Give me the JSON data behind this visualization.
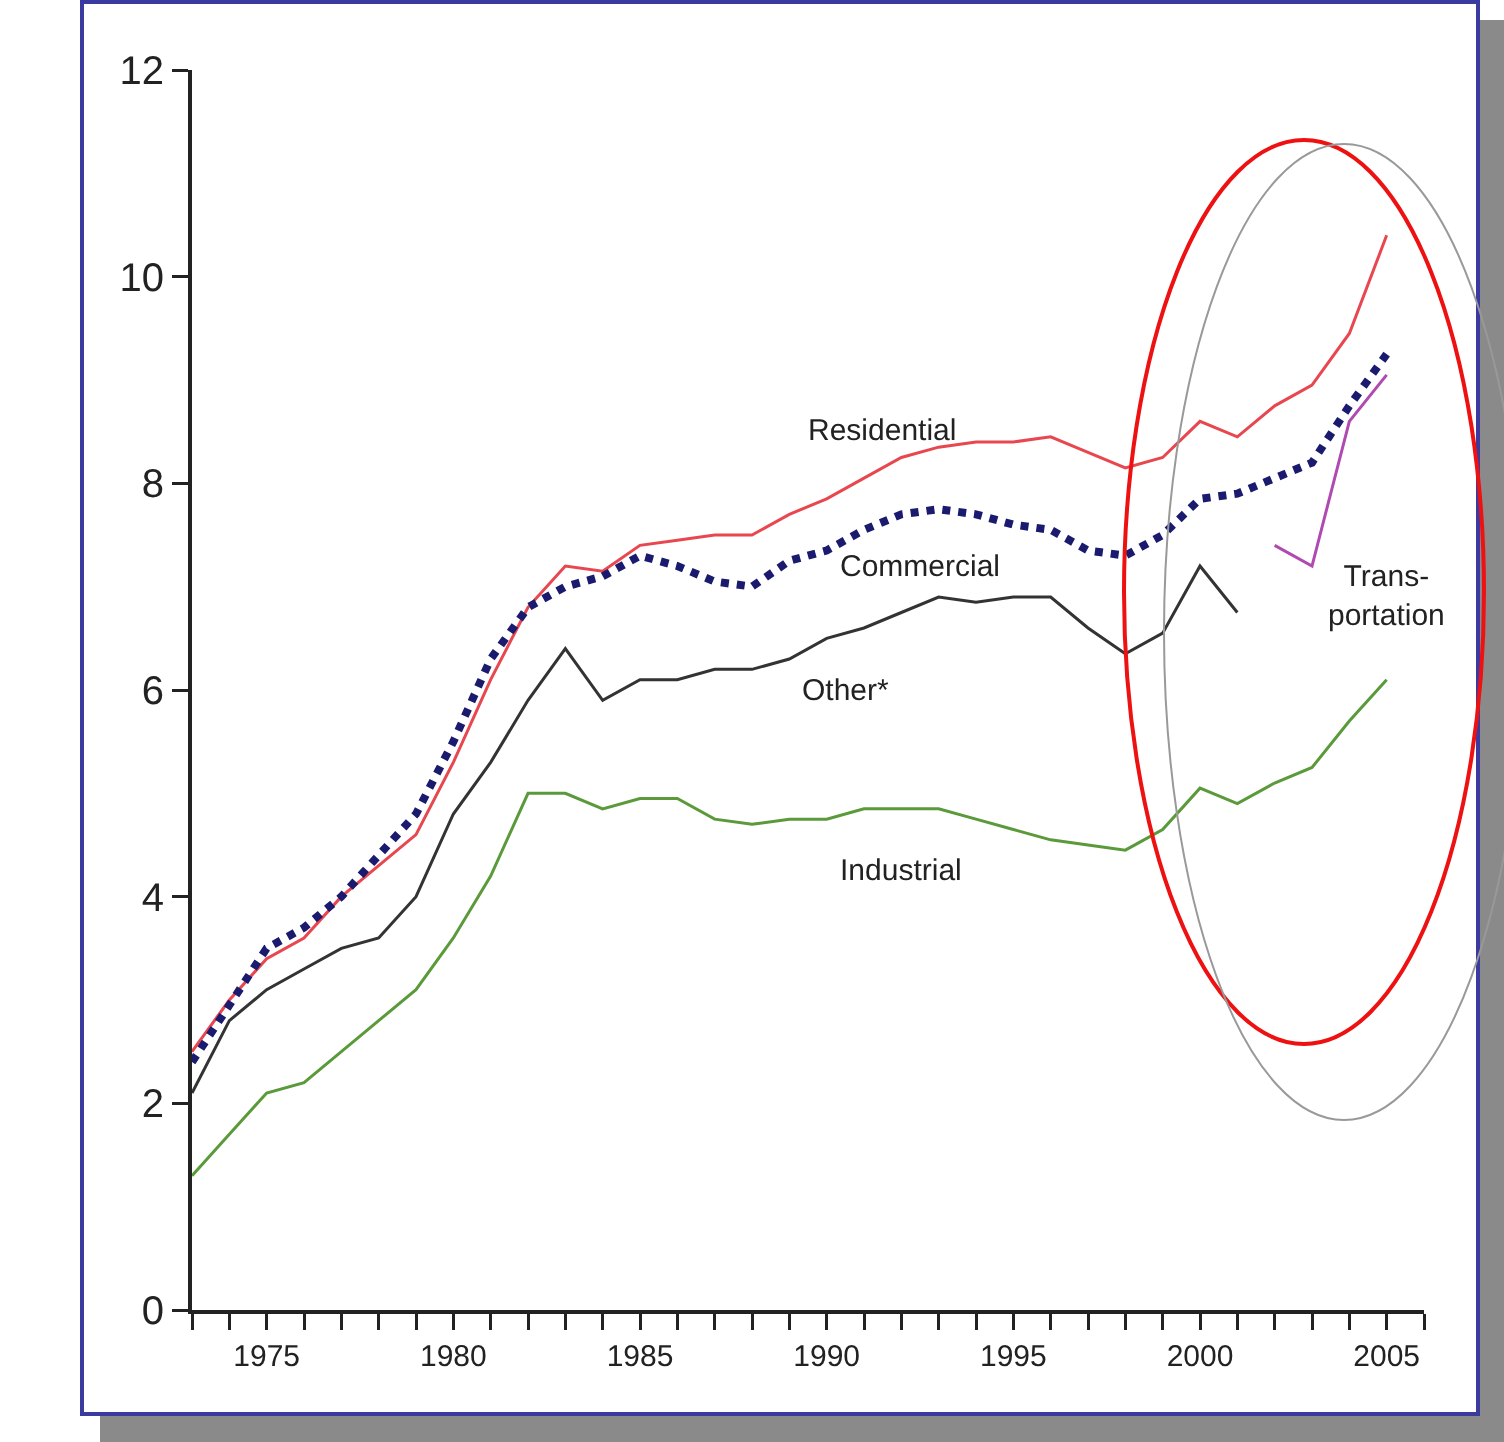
{
  "chart_data": {
    "type": "line",
    "x": [
      1973,
      1974,
      1975,
      1976,
      1977,
      1978,
      1979,
      1980,
      1981,
      1982,
      1983,
      1984,
      1985,
      1986,
      1987,
      1988,
      1989,
      1990,
      1991,
      1992,
      1993,
      1994,
      1995,
      1996,
      1997,
      1998,
      1999,
      2000,
      2001,
      2002,
      2003,
      2004,
      2005
    ],
    "series": [
      {
        "name": "Residential",
        "color": "#e8474f",
        "line_style": "solid",
        "values": [
          2.5,
          3.0,
          3.4,
          3.6,
          4.0,
          4.3,
          4.6,
          5.3,
          6.1,
          6.8,
          7.2,
          7.15,
          7.4,
          7.45,
          7.5,
          7.5,
          7.7,
          7.85,
          8.05,
          8.25,
          8.35,
          8.4,
          8.4,
          8.45,
          8.3,
          8.15,
          8.25,
          8.6,
          8.45,
          8.75,
          8.95,
          9.45,
          10.4
        ]
      },
      {
        "name": "Commercial",
        "color": "#1a1a6e",
        "line_style": "dotted",
        "values": [
          2.4,
          2.95,
          3.5,
          3.7,
          4.0,
          4.4,
          4.8,
          5.5,
          6.3,
          6.8,
          7.0,
          7.1,
          7.3,
          7.2,
          7.05,
          7.0,
          7.25,
          7.35,
          7.55,
          7.7,
          7.75,
          7.7,
          7.6,
          7.55,
          7.35,
          7.3,
          7.5,
          7.85,
          7.9,
          8.05,
          8.2,
          8.75,
          9.25
        ]
      },
      {
        "name": "Other*",
        "color": "#333333",
        "line_style": "solid",
        "values": [
          2.1,
          2.8,
          3.1,
          3.3,
          3.5,
          3.6,
          4.0,
          4.8,
          5.3,
          5.9,
          6.4,
          5.9,
          6.1,
          6.1,
          6.2,
          6.2,
          6.3,
          6.5,
          6.6,
          6.75,
          6.9,
          6.85,
          6.9,
          6.9,
          6.6,
          6.35,
          6.55,
          7.2,
          6.75,
          null,
          null,
          null,
          null
        ]
      },
      {
        "name": "Industrial",
        "color": "#5a9a3a",
        "line_style": "solid",
        "values": [
          1.3,
          1.7,
          2.1,
          2.2,
          2.5,
          2.8,
          3.1,
          3.6,
          4.2,
          5.0,
          5.0,
          4.85,
          4.95,
          4.95,
          4.75,
          4.7,
          4.75,
          4.75,
          4.85,
          4.85,
          4.85,
          4.75,
          4.65,
          4.55,
          4.5,
          4.45,
          4.65,
          5.05,
          4.9,
          5.1,
          5.25,
          5.7,
          6.1
        ]
      },
      {
        "name": "Trans-\nportation",
        "color": "#b04ab0",
        "line_style": "solid",
        "values": [
          null,
          null,
          null,
          null,
          null,
          null,
          null,
          null,
          null,
          null,
          null,
          null,
          null,
          null,
          null,
          null,
          null,
          null,
          null,
          null,
          null,
          null,
          null,
          null,
          null,
          null,
          null,
          null,
          null,
          7.4,
          7.2,
          8.6,
          9.05
        ]
      }
    ],
    "xlim": [
      1973,
      2006
    ],
    "xticks": [
      {
        "value": 1973,
        "label": null
      },
      {
        "value": 1974,
        "label": null
      },
      1975,
      {
        "value": 1976,
        "label": null
      },
      {
        "value": 1977,
        "label": null
      },
      {
        "value": 1978,
        "label": null
      },
      {
        "value": 1979,
        "label": null
      },
      1980,
      {
        "value": 1981,
        "label": null
      },
      {
        "value": 1982,
        "label": null
      },
      {
        "value": 1983,
        "label": null
      },
      {
        "value": 1984,
        "label": null
      },
      1985,
      {
        "value": 1986,
        "label": null
      },
      {
        "value": 1987,
        "label": null
      },
      {
        "value": 1988,
        "label": null
      },
      {
        "value": 1989,
        "label": null
      },
      1990,
      {
        "value": 1991,
        "label": null
      },
      {
        "value": 1992,
        "label": null
      },
      {
        "value": 1993,
        "label": null
      },
      {
        "value": 1994,
        "label": null
      },
      1995,
      {
        "value": 1996,
        "label": null
      },
      {
        "value": 1997,
        "label": null
      },
      {
        "value": 1998,
        "label": null
      },
      {
        "value": 1999,
        "label": null
      },
      2000,
      {
        "value": 2001,
        "label": null
      },
      {
        "value": 2002,
        "label": null
      },
      {
        "value": 2003,
        "label": null
      },
      {
        "value": 2004,
        "label": null
      },
      2005,
      {
        "value": 2006,
        "label": null
      }
    ],
    "ylim": [
      0,
      12
    ],
    "yticks": [
      0,
      2,
      4,
      6,
      8,
      10,
      12
    ],
    "grid": false,
    "legend": false,
    "marker": "none"
  }
}
